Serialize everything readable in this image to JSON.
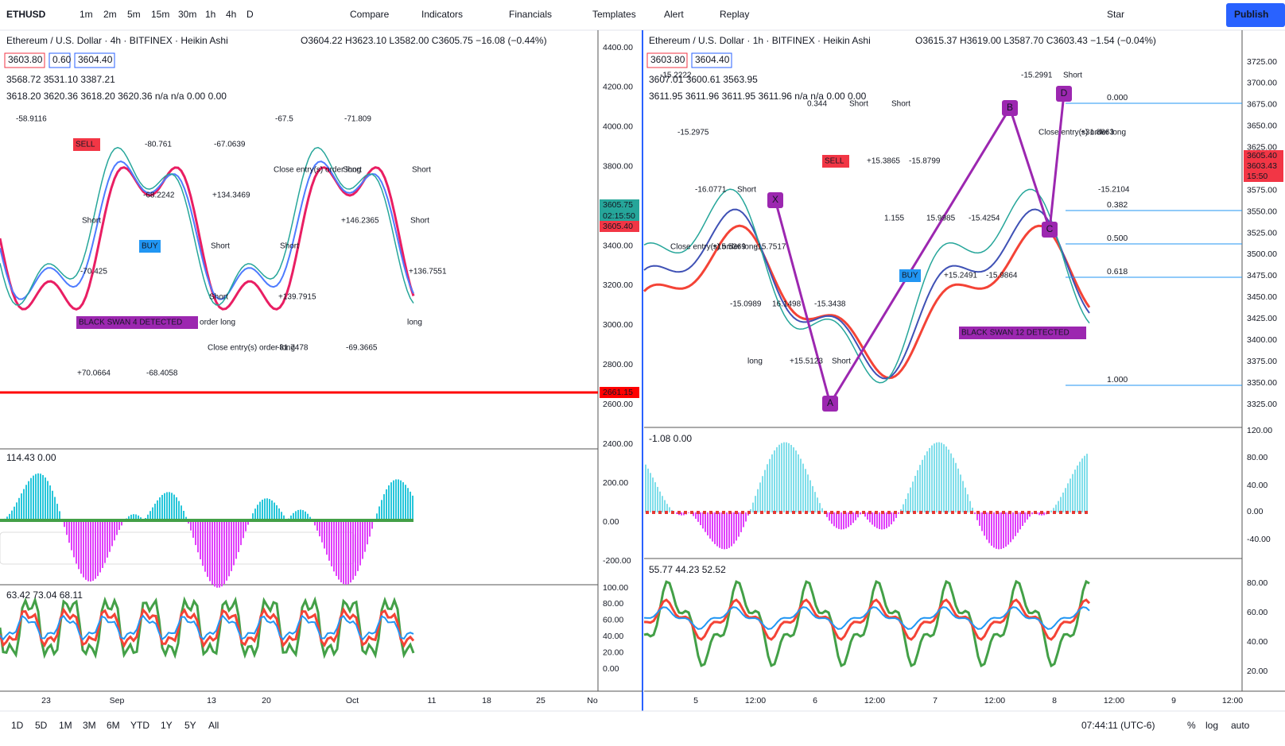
{
  "toolbar": {
    "symbol": "ETHUSD",
    "intervals": [
      "1m",
      "2m",
      "5m",
      "15m",
      "30m",
      "1h",
      "4h",
      "D"
    ],
    "buttons": [
      "Compare",
      "Indicators",
      "Financials",
      "Templates",
      "Alert",
      "Replay"
    ],
    "layout": "Star",
    "publish": "Publish"
  },
  "panels": [
    {
      "header": "Ethereum / U.S. Dollar · 4h · BITFINEX · Heikin Ashi",
      "ohlc": "O3604.22 H3623.10 L3582.00 C3605.75 −16.08 (−0.44%)",
      "price_boxes": [
        "3603.80",
        "0.60",
        "3604.40"
      ],
      "line2": "3568.72 3531.10 3387.21",
      "line3": "3618.20 3620.36 3618.20 3620.36 n/a n/a 0.00 0.00",
      "price_axis": [
        "4400.00",
        "4200.00",
        "4000.00",
        "3800.00",
        "3600.00",
        "3400.00",
        "3200.00",
        "3000.00",
        "2800.00",
        "2600.00",
        "2400.00"
      ],
      "price_tags": [
        "3605.75",
        "02:15:50",
        "3605.40",
        "2661.15"
      ],
      "macd_legend": "114.43 0.00",
      "macd_axis": [
        "200.00",
        "0.00",
        "-200.00"
      ],
      "rsi_legend": "63.42 73.04 68.11",
      "rsi_axis": [
        "100.00",
        "80.00",
        "60.00",
        "40.00",
        "20.00",
        "0.00"
      ],
      "x_axis": [
        "23",
        "Sep",
        "13",
        "20",
        "Oct",
        "11",
        "18",
        "25",
        "No"
      ],
      "annotations": [
        "-58.9116",
        "Short",
        "Close entry(s) order long",
        "-67.0639",
        "Short",
        "-69.3665",
        "Short",
        "-70.425",
        "-68.4058",
        "+134.3469",
        "+139.7915",
        "-71.809",
        "Short",
        "BLACK SWAN 4 DETECTED",
        "-80.761",
        "Short",
        "-81.7478",
        "Short",
        "+136.7551",
        "+70.0664",
        "-68.2242",
        "Short",
        "-67.5",
        "+146.2365",
        "long",
        "SELL",
        "BUY",
        "Close entry(s) order long",
        "Close entry(s) order long"
      ]
    },
    {
      "header": "Ethereum / U.S. Dollar · 1h · BITFINEX · Heikin Ashi",
      "ohlc": "O3615.37 H3619.00 L3587.70 C3603.43 −1.54 (−0.04%)",
      "price_boxes": [
        "3603.80",
        "3604.40"
      ],
      "line2": "3607.01 3600.61 3563.95",
      "line3": "3611.95 3611.96 3611.95 3611.96 n/a n/a 0.00 0.00",
      "price_axis": [
        "3725.00",
        "3700.00",
        "3675.00",
        "3650.00",
        "3625.00",
        "3600.00",
        "3575.00",
        "3550.00",
        "3525.00",
        "3500.00",
        "3475.00",
        "3450.00",
        "3425.00",
        "3400.00",
        "3375.00",
        "3350.00",
        "3325.00"
      ],
      "price_tags": [
        "3605.40",
        "3603.43",
        "15:50"
      ],
      "macd_legend": "-1.08 0.00",
      "macd_axis": [
        "120.00",
        "80.00",
        "40.00",
        "0.00",
        "-40.00"
      ],
      "rsi_legend": "55.77 44.23 52.52",
      "rsi_axis": [
        "80.00",
        "60.00",
        "40.00",
        "20.00"
      ],
      "x_axis": [
        "5",
        "12:00",
        "6",
        "12:00",
        "7",
        "12:00",
        "8",
        "12:00",
        "9",
        "12:00"
      ],
      "fib": [
        "0.000",
        "0.382",
        "0.500",
        "0.618",
        "1.000"
      ],
      "patterns": [
        "X",
        "A",
        "B",
        "C",
        "D"
      ],
      "annotations": [
        "-15.2222",
        "Short",
        "-15.3438",
        "Short",
        "-15.4254",
        "Short",
        "-15.2975",
        "-15.7517",
        "Short",
        "-15.8799",
        "-15.9864",
        "Short",
        "-16.0771",
        "16.1498",
        "Short",
        "15.9985",
        "+32.2269",
        "+31.8663",
        "+15.5369",
        "+15.5123",
        "+15.3865",
        "+15.2491",
        "-15.2991",
        "-15.2104",
        "-15.0989",
        "0.344",
        "1.155",
        "BLACK SWAN 12 DETECTED",
        "Close entry(s) order long",
        "Close entry(s) order long",
        "long",
        "SELL",
        "BUY"
      ]
    }
  ],
  "bottom": {
    "ranges": [
      "1D",
      "5D",
      "1M",
      "3M",
      "6M",
      "YTD",
      "1Y",
      "5Y",
      "All"
    ],
    "clock": "07:44:11 (UTC-6)",
    "options": [
      "%",
      "log",
      "auto"
    ]
  }
}
